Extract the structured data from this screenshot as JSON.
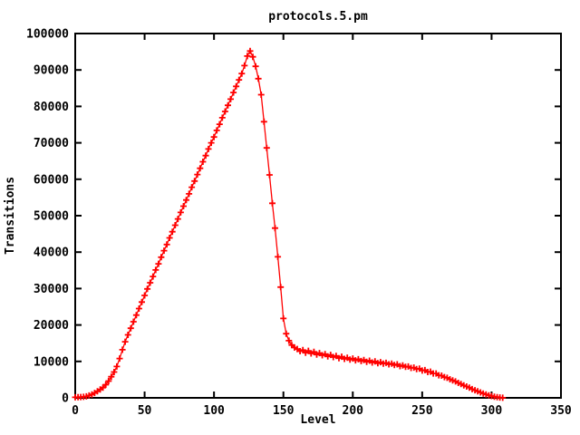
{
  "title": "protocols.5.pm",
  "colors": {
    "series": "#ff0000",
    "axis": "#000000",
    "background": "#ffffff"
  },
  "chart_data": {
    "type": "line",
    "title": "protocols.5.pm",
    "xlabel": "Level",
    "ylabel": "Transitions",
    "xlim": [
      0,
      350
    ],
    "ylim": [
      0,
      100000
    ],
    "x_ticks": [
      0,
      50,
      100,
      150,
      200,
      250,
      300,
      350
    ],
    "y_ticks": [
      0,
      10000,
      20000,
      30000,
      40000,
      50000,
      60000,
      70000,
      80000,
      90000,
      100000
    ],
    "grid": false,
    "legend": "none",
    "marker": "plus",
    "series": [
      {
        "name": "protocols.5.pm",
        "color": "#ff0000",
        "x_start": 0,
        "x_step": 2,
        "values": [
          150,
          180,
          220,
          280,
          400,
          650,
          950,
          1350,
          1800,
          2300,
          2800,
          3600,
          4600,
          5800,
          7100,
          8600,
          10800,
          13200,
          15400,
          17300,
          19100,
          20900,
          22700,
          24500,
          26300,
          28100,
          29900,
          31600,
          33300,
          35100,
          36800,
          38600,
          40400,
          42100,
          43900,
          45600,
          47400,
          49100,
          50900,
          52600,
          54300,
          56000,
          57800,
          59500,
          61300,
          63000,
          64800,
          66500,
          68300,
          70000,
          71600,
          73400,
          75100,
          76900,
          78600,
          80300,
          82000,
          83800,
          85500,
          87300,
          89000,
          91200,
          93800,
          95200,
          93600,
          91000,
          87600,
          83200,
          75800,
          68600,
          61200,
          53400,
          46600,
          38700,
          30400,
          21800,
          17600,
          15700,
          14500,
          13800,
          13400,
          12800,
          13100,
          12400,
          12900,
          12200,
          12600,
          11900,
          12300,
          11700,
          12000,
          11400,
          11800,
          11200,
          11500,
          10900,
          11300,
          10700,
          11000,
          10500,
          10800,
          10300,
          10600,
          10100,
          10400,
          9900,
          10200,
          9700,
          10000,
          9500,
          9800,
          9400,
          9600,
          9200,
          9400,
          9000,
          9200,
          8700,
          8900,
          8500,
          8600,
          8200,
          8300,
          7900,
          8000,
          7500,
          7600,
          7100,
          7200,
          6700,
          6700,
          6200,
          6100,
          5700,
          5500,
          5100,
          4800,
          4500,
          4100,
          3800,
          3400,
          3100,
          2800,
          2400,
          2100,
          1800,
          1500,
          1200,
          950,
          700,
          500,
          330,
          200,
          100,
          30
        ]
      }
    ]
  }
}
